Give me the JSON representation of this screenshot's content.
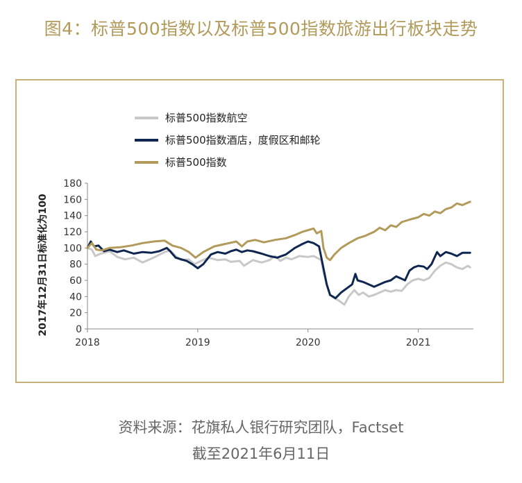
{
  "header": {
    "title": "图4：标普500指数以及标普500指数旅游出行板块走势"
  },
  "footer": {
    "source": "资料来源：花旗私人银行研究团队，Factset",
    "date": "截至2021年6月11日"
  },
  "chart_data": {
    "type": "line",
    "title": "",
    "xlabel": "",
    "ylabel": "2017年12月31日标准化为100",
    "ylim": [
      0,
      180
    ],
    "yticks": [
      0,
      20,
      40,
      60,
      80,
      100,
      120,
      140,
      160,
      180
    ],
    "xlim": [
      2018.0,
      2021.5
    ],
    "xticks": [
      2018,
      2019,
      2020,
      2021
    ],
    "grid": false,
    "legend_position": "top-left",
    "series": [
      {
        "name": "标普500指数航空",
        "color": "#c8c8c8",
        "points": [
          [
            2018.0,
            100
          ],
          [
            2018.04,
            98
          ],
          [
            2018.07,
            90
          ],
          [
            2018.12,
            93
          ],
          [
            2018.2,
            96
          ],
          [
            2018.27,
            89
          ],
          [
            2018.34,
            86
          ],
          [
            2018.42,
            88
          ],
          [
            2018.5,
            82
          ],
          [
            2018.6,
            88
          ],
          [
            2018.7,
            95
          ],
          [
            2018.75,
            97
          ],
          [
            2018.8,
            90
          ],
          [
            2018.85,
            85
          ],
          [
            2018.92,
            86
          ],
          [
            2018.97,
            80
          ],
          [
            2019.03,
            84
          ],
          [
            2019.1,
            88
          ],
          [
            2019.18,
            85
          ],
          [
            2019.25,
            86
          ],
          [
            2019.3,
            83
          ],
          [
            2019.38,
            84
          ],
          [
            2019.42,
            78
          ],
          [
            2019.5,
            85
          ],
          [
            2019.58,
            82
          ],
          [
            2019.65,
            85
          ],
          [
            2019.7,
            90
          ],
          [
            2019.75,
            84
          ],
          [
            2019.8,
            88
          ],
          [
            2019.85,
            86
          ],
          [
            2019.92,
            90
          ],
          [
            2020.0,
            89
          ],
          [
            2020.05,
            90
          ],
          [
            2020.08,
            88
          ],
          [
            2020.12,
            85
          ],
          [
            2020.14,
            70
          ],
          [
            2020.17,
            55
          ],
          [
            2020.2,
            42
          ],
          [
            2020.24,
            38
          ],
          [
            2020.28,
            35
          ],
          [
            2020.33,
            30
          ],
          [
            2020.37,
            40
          ],
          [
            2020.42,
            48
          ],
          [
            2020.46,
            42
          ],
          [
            2020.5,
            45
          ],
          [
            2020.55,
            40
          ],
          [
            2020.6,
            42
          ],
          [
            2020.65,
            45
          ],
          [
            2020.7,
            48
          ],
          [
            2020.75,
            46
          ],
          [
            2020.8,
            48
          ],
          [
            2020.85,
            47
          ],
          [
            2020.9,
            55
          ],
          [
            2020.95,
            60
          ],
          [
            2021.0,
            62
          ],
          [
            2021.05,
            60
          ],
          [
            2021.1,
            63
          ],
          [
            2021.15,
            72
          ],
          [
            2021.2,
            78
          ],
          [
            2021.25,
            82
          ],
          [
            2021.3,
            80
          ],
          [
            2021.35,
            76
          ],
          [
            2021.4,
            74
          ],
          [
            2021.45,
            78
          ],
          [
            2021.47,
            76
          ]
        ]
      },
      {
        "name": "标普500指数酒店，度假区和邮轮",
        "color": "#0e2650",
        "points": [
          [
            2018.0,
            100
          ],
          [
            2018.03,
            108
          ],
          [
            2018.06,
            102
          ],
          [
            2018.1,
            103
          ],
          [
            2018.15,
            96
          ],
          [
            2018.2,
            98
          ],
          [
            2018.27,
            95
          ],
          [
            2018.33,
            97
          ],
          [
            2018.42,
            93
          ],
          [
            2018.5,
            95
          ],
          [
            2018.58,
            94
          ],
          [
            2018.65,
            96
          ],
          [
            2018.72,
            100
          ],
          [
            2018.75,
            96
          ],
          [
            2018.8,
            88
          ],
          [
            2018.85,
            86
          ],
          [
            2018.9,
            84
          ],
          [
            2018.95,
            80
          ],
          [
            2019.0,
            75
          ],
          [
            2019.05,
            80
          ],
          [
            2019.12,
            92
          ],
          [
            2019.18,
            95
          ],
          [
            2019.25,
            93
          ],
          [
            2019.3,
            96
          ],
          [
            2019.35,
            98
          ],
          [
            2019.4,
            95
          ],
          [
            2019.45,
            97
          ],
          [
            2019.5,
            96
          ],
          [
            2019.58,
            93
          ],
          [
            2019.65,
            90
          ],
          [
            2019.72,
            88
          ],
          [
            2019.8,
            92
          ],
          [
            2019.88,
            100
          ],
          [
            2019.95,
            105
          ],
          [
            2020.0,
            108
          ],
          [
            2020.05,
            106
          ],
          [
            2020.1,
            102
          ],
          [
            2020.14,
            75
          ],
          [
            2020.17,
            55
          ],
          [
            2020.2,
            42
          ],
          [
            2020.25,
            38
          ],
          [
            2020.3,
            45
          ],
          [
            2020.35,
            50
          ],
          [
            2020.4,
            55
          ],
          [
            2020.43,
            68
          ],
          [
            2020.45,
            60
          ],
          [
            2020.5,
            58
          ],
          [
            2020.55,
            55
          ],
          [
            2020.6,
            52
          ],
          [
            2020.65,
            55
          ],
          [
            2020.7,
            58
          ],
          [
            2020.75,
            60
          ],
          [
            2020.8,
            65
          ],
          [
            2020.85,
            62
          ],
          [
            2020.88,
            60
          ],
          [
            2020.92,
            72
          ],
          [
            2020.96,
            76
          ],
          [
            2021.0,
            78
          ],
          [
            2021.05,
            77
          ],
          [
            2021.08,
            74
          ],
          [
            2021.12,
            80
          ],
          [
            2021.17,
            95
          ],
          [
            2021.2,
            90
          ],
          [
            2021.25,
            95
          ],
          [
            2021.3,
            93
          ],
          [
            2021.35,
            90
          ],
          [
            2021.4,
            94
          ],
          [
            2021.47,
            94
          ]
        ]
      },
      {
        "name": "标普500指数",
        "color": "#b19a5a",
        "points": [
          [
            2018.0,
            100
          ],
          [
            2018.04,
            106
          ],
          [
            2018.08,
            98
          ],
          [
            2018.13,
            97
          ],
          [
            2018.2,
            100
          ],
          [
            2018.3,
            101
          ],
          [
            2018.4,
            103
          ],
          [
            2018.5,
            106
          ],
          [
            2018.6,
            108
          ],
          [
            2018.7,
            109
          ],
          [
            2018.77,
            103
          ],
          [
            2018.85,
            100
          ],
          [
            2018.92,
            95
          ],
          [
            2018.98,
            88
          ],
          [
            2019.05,
            95
          ],
          [
            2019.15,
            102
          ],
          [
            2019.25,
            105
          ],
          [
            2019.35,
            108
          ],
          [
            2019.4,
            102
          ],
          [
            2019.45,
            108
          ],
          [
            2019.52,
            110
          ],
          [
            2019.6,
            107
          ],
          [
            2019.7,
            110
          ],
          [
            2019.8,
            112
          ],
          [
            2019.88,
            116
          ],
          [
            2019.95,
            120
          ],
          [
            2020.05,
            124
          ],
          [
            2020.08,
            118
          ],
          [
            2020.12,
            121
          ],
          [
            2020.14,
            100
          ],
          [
            2020.17,
            88
          ],
          [
            2020.2,
            85
          ],
          [
            2020.24,
            92
          ],
          [
            2020.3,
            100
          ],
          [
            2020.37,
            106
          ],
          [
            2020.45,
            112
          ],
          [
            2020.52,
            115
          ],
          [
            2020.6,
            120
          ],
          [
            2020.65,
            125
          ],
          [
            2020.7,
            122
          ],
          [
            2020.75,
            128
          ],
          [
            2020.8,
            126
          ],
          [
            2020.85,
            132
          ],
          [
            2020.92,
            135
          ],
          [
            2021.0,
            138
          ],
          [
            2021.05,
            142
          ],
          [
            2021.1,
            140
          ],
          [
            2021.15,
            145
          ],
          [
            2021.2,
            143
          ],
          [
            2021.25,
            148
          ],
          [
            2021.3,
            150
          ],
          [
            2021.35,
            155
          ],
          [
            2021.4,
            153
          ],
          [
            2021.45,
            156
          ],
          [
            2021.47,
            157
          ]
        ]
      }
    ]
  }
}
